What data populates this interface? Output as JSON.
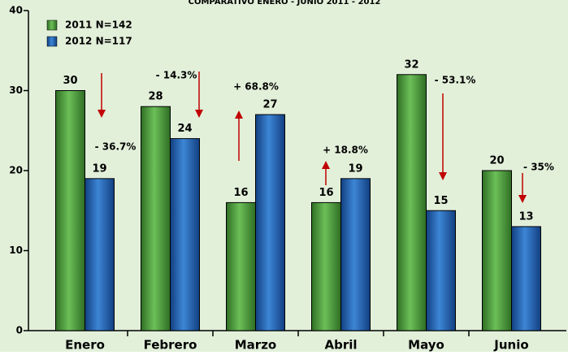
{
  "chart_data": {
    "type": "bar",
    "title": "COMPARATIVO ENERO - JUNIO 2011 - 2012",
    "categories": [
      "Enero",
      "Febrero",
      "Marzo",
      "Abril",
      "Mayo",
      "Junio"
    ],
    "series": [
      {
        "name": "2011 N=142",
        "color": "#4a9a3a",
        "values": [
          30,
          28,
          16,
          16,
          32,
          20
        ]
      },
      {
        "name": "2012 N=117",
        "color": "#1f5fb0",
        "values": [
          19,
          24,
          27,
          19,
          15,
          13
        ]
      }
    ],
    "annotations": [
      "- 36.7%",
      "- 14.3%",
      "+ 68.8%",
      "+ 18.8%",
      "- 53.1%",
      "- 35%"
    ],
    "ylim": [
      0,
      40
    ],
    "yticks": [
      0,
      10,
      20,
      30,
      40
    ],
    "legend": "upper left"
  }
}
